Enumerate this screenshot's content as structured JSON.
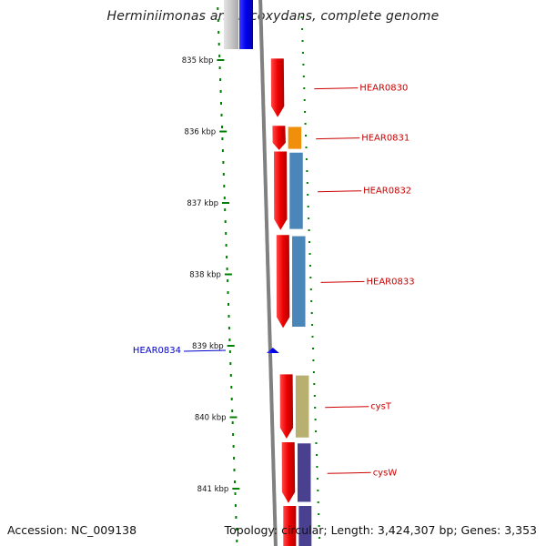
{
  "title": "Herminiimonas arsenicoxydans, complete genome",
  "footer": {
    "accession": "Accession: NC_009138",
    "stats": "Topology: circular; Length: 3,424,307 bp; Genes: 3,353"
  },
  "colors": {
    "forward_gene": "#e80000",
    "reverse_gene": "#0000ee",
    "cog_label_forward": "#cc0000",
    "cog_label_reverse": "#0000cc",
    "backbone": "#808080",
    "tick": "#008000"
  },
  "ticks": [
    {
      "kbp": 835,
      "label": "835 kbp"
    },
    {
      "kbp": 836,
      "label": "836 kbp"
    },
    {
      "kbp": 837,
      "label": "837 kbp"
    },
    {
      "kbp": 838,
      "label": "838 kbp"
    },
    {
      "kbp": 839,
      "label": "839 kbp"
    },
    {
      "kbp": 840,
      "label": "840 kbp"
    },
    {
      "kbp": 841,
      "label": "841 kbp"
    }
  ],
  "genes": [
    {
      "label": "HEAR0830",
      "strand": "+",
      "start_kbp": 834.98,
      "end_kbp": 835.8,
      "cog_color": ""
    },
    {
      "label": "HEAR0831",
      "strand": "+",
      "start_kbp": 835.92,
      "end_kbp": 836.26,
      "cog_color": "#f0900a"
    },
    {
      "label": "HEAR0832",
      "strand": "+",
      "start_kbp": 836.28,
      "end_kbp": 837.38,
      "cog_color": "#4a86b8"
    },
    {
      "label": "HEAR0833",
      "strand": "+",
      "start_kbp": 837.45,
      "end_kbp": 838.75,
      "cog_color": "#4a86b8"
    },
    {
      "label": "HEAR0834",
      "strand": "-",
      "start_kbp": 839.0,
      "end_kbp": 839.08,
      "cog_color": ""
    },
    {
      "label": "cysT",
      "strand": "+",
      "start_kbp": 839.4,
      "end_kbp": 840.3,
      "cog_color": "#b8b070"
    },
    {
      "label": "cysW",
      "strand": "+",
      "start_kbp": 840.35,
      "end_kbp": 841.2,
      "cog_color": "#4a4090"
    }
  ]
}
